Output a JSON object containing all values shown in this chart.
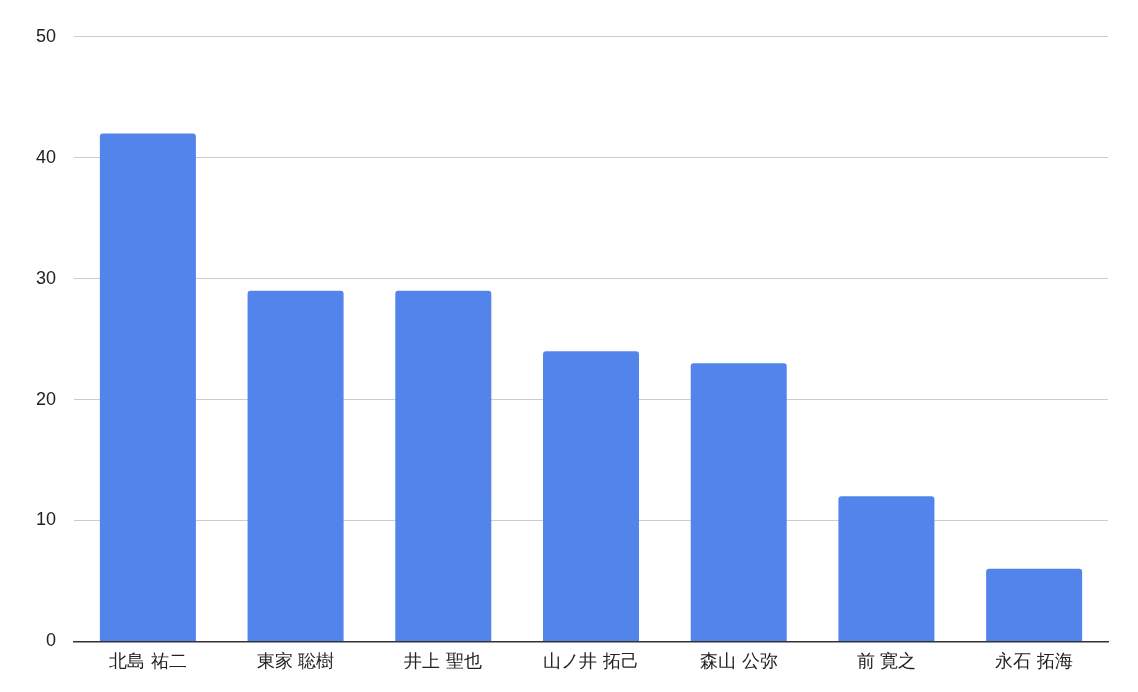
{
  "chart_data": {
    "type": "bar",
    "categories": [
      "北島 祐二",
      "東家 聡樹",
      "井上 聖也",
      "山ノ井 拓己",
      "森山 公弥",
      "前 寛之",
      "永石 拓海"
    ],
    "values": [
      42,
      29,
      29,
      24,
      23,
      12,
      6
    ],
    "color": "#5284ec",
    "ylim": [
      0,
      50
    ],
    "yticks": [
      0,
      10,
      20,
      30,
      40,
      50
    ],
    "grid": "y"
  }
}
